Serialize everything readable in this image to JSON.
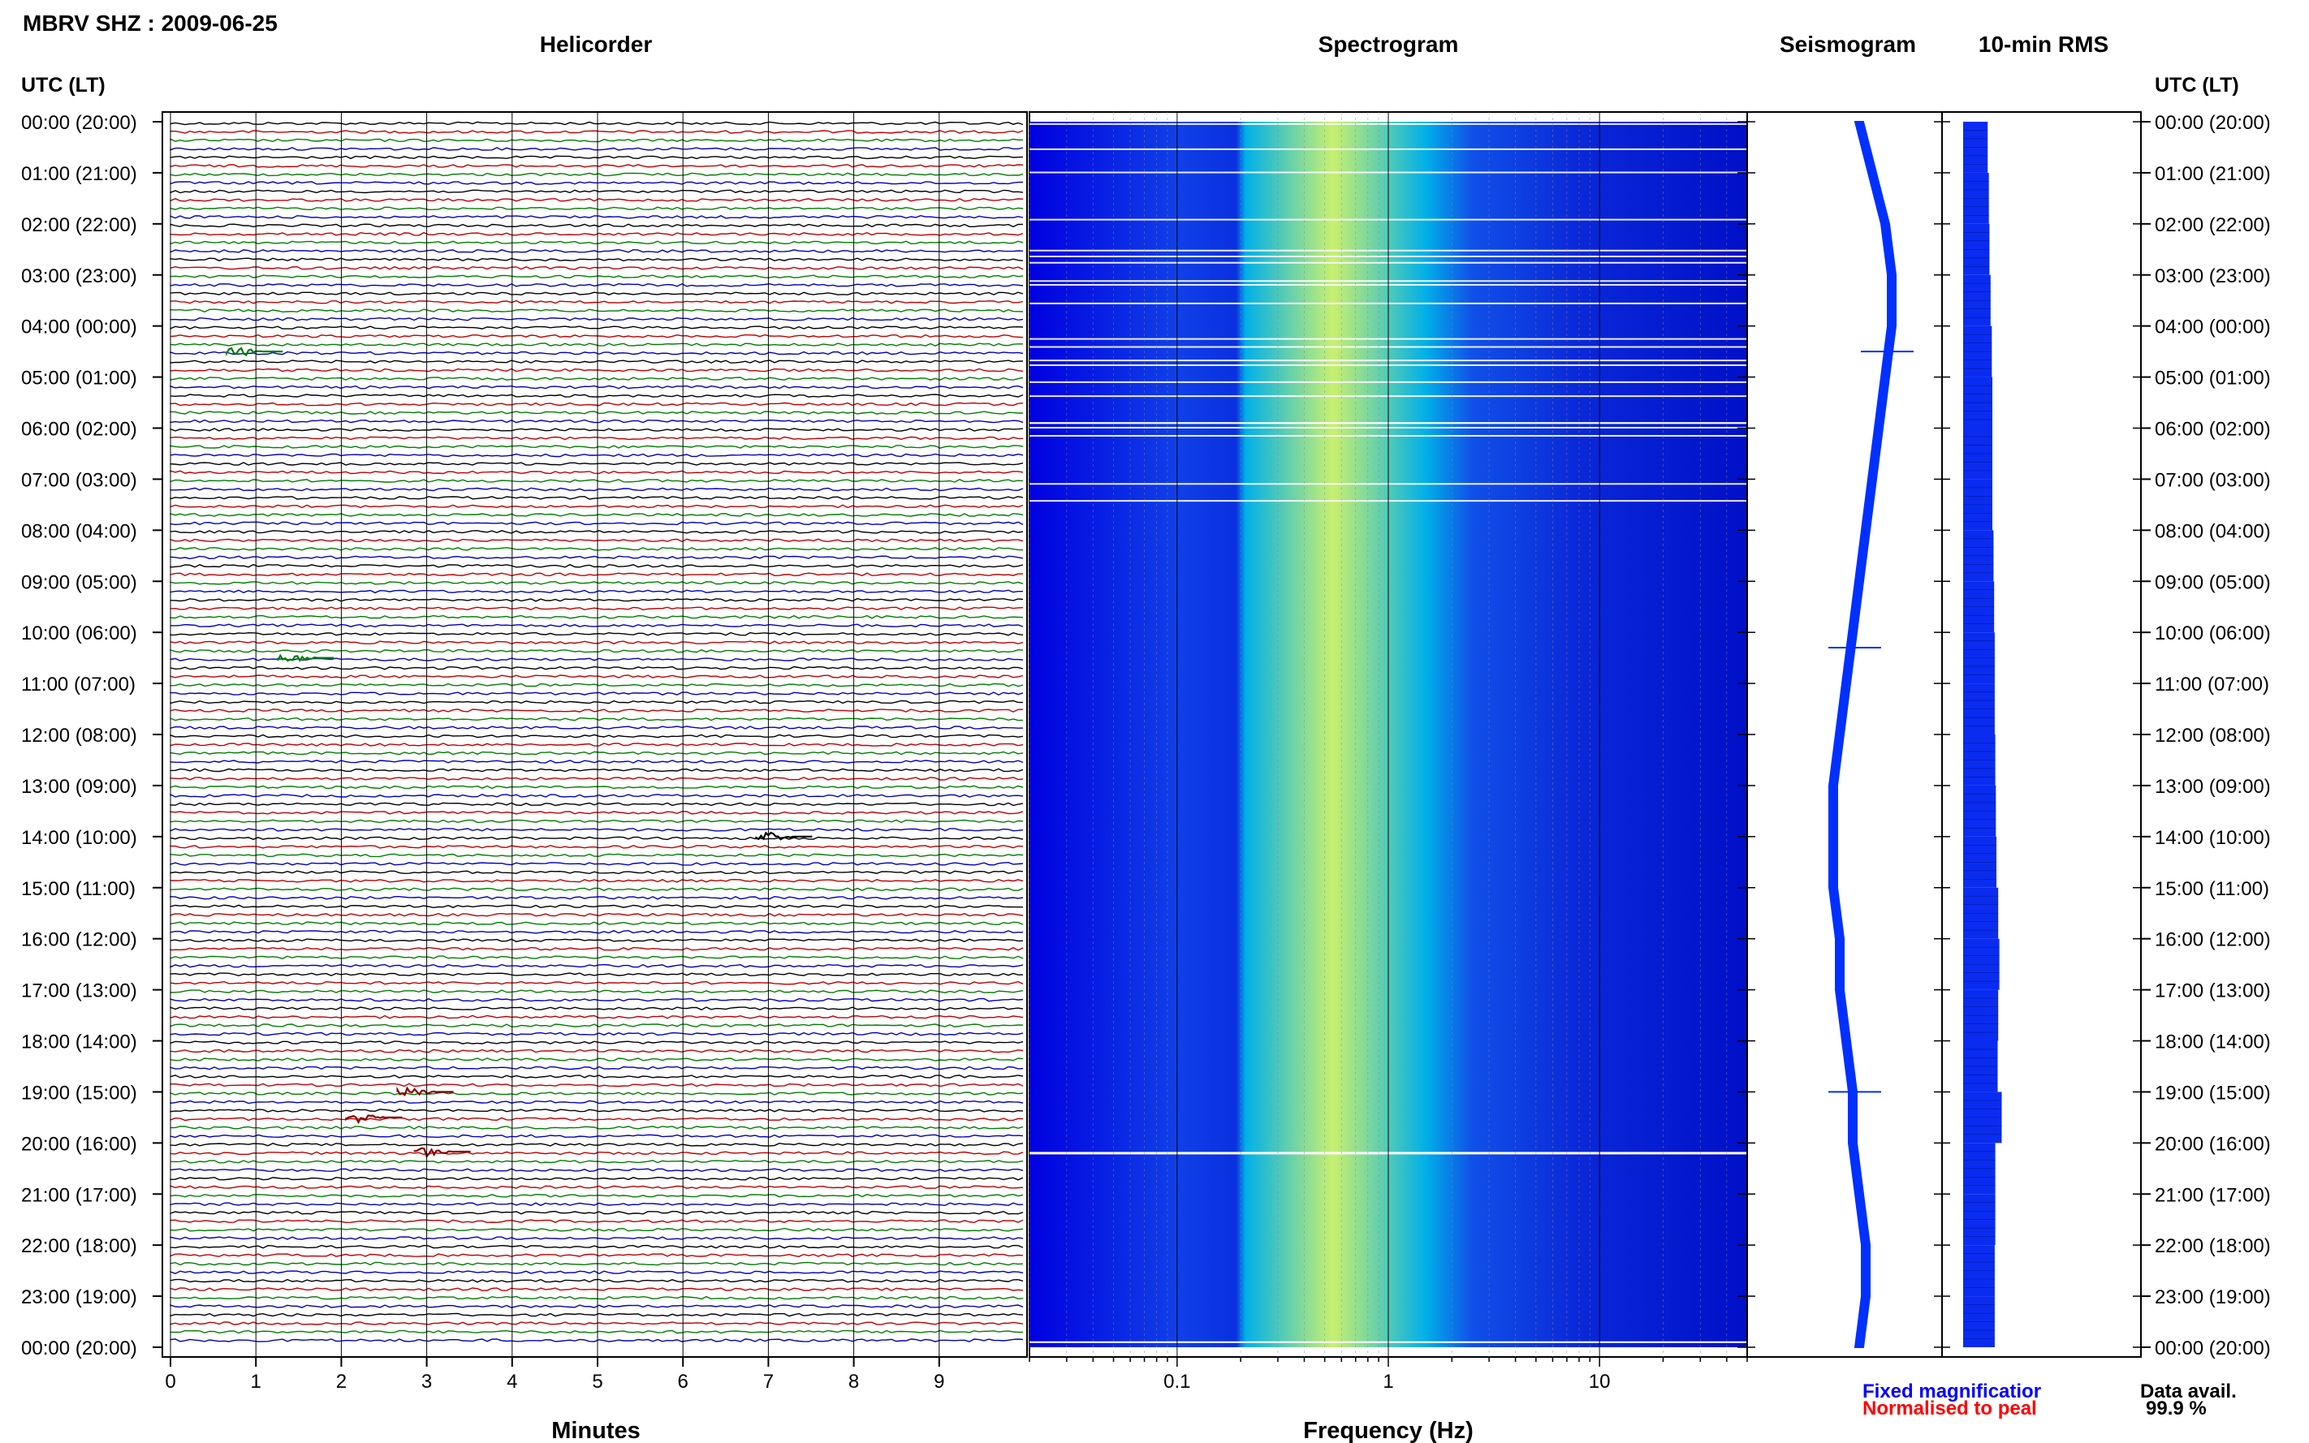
{
  "header": {
    "station_title": "MBRV SHZ : 2009-06-25",
    "time_axis_label_left": "UTC (LT)",
    "time_axis_label_right": "UTC (LT)"
  },
  "panels": {
    "helicorder": "Helicorder",
    "spectrogram": "Spectrogram",
    "seismogram": "Seismogram",
    "rms": "10-min RMS"
  },
  "footer": {
    "minutes_label": "Minutes",
    "frequency_label": "Frequency (Hz)",
    "legend_fixed": "Fixed magnificatior",
    "legend_normalised": "Normalised to peal",
    "data_avail_label": "Data avail.",
    "data_avail_value": "99.9 %"
  },
  "colors": {
    "helicorder_traces": [
      "#000000",
      "#bf0000",
      "#007f00",
      "#0000bf"
    ],
    "spectrogram_low": "#0000e0",
    "spectrogram_mid": "#00b0e8",
    "spectrogram_high": "#c8f070",
    "seismogram": "#0030ff",
    "rms_bar": "#0a2cf0",
    "legend_fixed": "#0000ff",
    "legend_normalised": "#ff0000"
  },
  "chart_data": [
    {
      "type": "helicorder",
      "title": "Helicorder",
      "xlabel": "Minutes",
      "x_ticks": [
        0,
        1,
        2,
        3,
        4,
        5,
        6,
        7,
        8,
        9
      ],
      "xlim": [
        0,
        10
      ],
      "time_ticks": [
        "00:00 (20:00)",
        "01:00 (21:00)",
        "02:00 (22:00)",
        "03:00 (23:00)",
        "04:00 (00:00)",
        "05:00 (01:00)",
        "06:00 (02:00)",
        "07:00 (03:00)",
        "08:00 (04:00)",
        "09:00 (05:00)",
        "10:00 (06:00)",
        "11:00 (07:00)",
        "12:00 (08:00)",
        "13:00 (09:00)",
        "14:00 (10:00)",
        "15:00 (11:00)",
        "16:00 (12:00)",
        "17:00 (13:00)",
        "18:00 (14:00)",
        "19:00 (15:00)",
        "20:00 (16:00)",
        "21:00 (17:00)",
        "22:00 (18:00)",
        "23:00 (19:00)",
        "00:00 (20:00)"
      ],
      "traces_per_hour": 6,
      "events": [
        {
          "hour": 4.5,
          "minute": 0.8,
          "color": "green"
        },
        {
          "hour": 10.5,
          "minute": 1.4,
          "color": "green"
        },
        {
          "hour": 14.0,
          "minute": 7.0,
          "color": "black"
        },
        {
          "hour": 19.0,
          "minute": 2.8,
          "color": "red"
        },
        {
          "hour": 19.5,
          "minute": 2.2,
          "color": "red"
        },
        {
          "hour": 20.17,
          "minute": 3.0,
          "color": "red"
        }
      ]
    },
    {
      "type": "heatmap",
      "title": "Spectrogram",
      "xlabel": "Frequency (Hz)",
      "x_scale": "log",
      "xlim": [
        0.02,
        50
      ],
      "x_ticks": [
        0.1,
        1,
        10
      ],
      "x_tick_labels": [
        "0.1",
        "1",
        "10"
      ],
      "peak_frequency_band": [
        0.2,
        1.5
      ],
      "gaps_until_hour": 7.5
    },
    {
      "type": "line",
      "title": "Seismogram",
      "series": [
        {
          "values": [
            0,
            0.02,
            0.04,
            0.05,
            0.05,
            0.04,
            0.03,
            0.02,
            0.01,
            0,
            -0.01,
            -0.02,
            -0.03,
            -0.04,
            -0.04,
            -0.04,
            -0.03,
            -0.03,
            -0.02,
            -0.01,
            -0.01,
            0,
            0.01,
            0.01,
            0
          ]
        }
      ],
      "spikes_at_hours": [
        4.5,
        10.3,
        19.0
      ]
    },
    {
      "type": "bar",
      "title": "10-min RMS",
      "orientation": "horizontal",
      "categories": [
        "00:00",
        "01:00",
        "02:00",
        "03:00",
        "04:00",
        "05:00",
        "06:00",
        "07:00",
        "08:00",
        "09:00",
        "10:00",
        "11:00",
        "12:00",
        "13:00",
        "14:00",
        "15:00",
        "16:00",
        "17:00",
        "18:00",
        "19:00",
        "20:00",
        "21:00",
        "22:00",
        "23:00"
      ],
      "values": [
        0.42,
        0.44,
        0.45,
        0.47,
        0.49,
        0.5,
        0.5,
        0.5,
        0.52,
        0.53,
        0.54,
        0.54,
        0.55,
        0.56,
        0.57,
        0.6,
        0.62,
        0.6,
        0.59,
        0.66,
        0.55,
        0.55,
        0.54,
        0.54
      ],
      "peak_value": 1.0
    }
  ]
}
